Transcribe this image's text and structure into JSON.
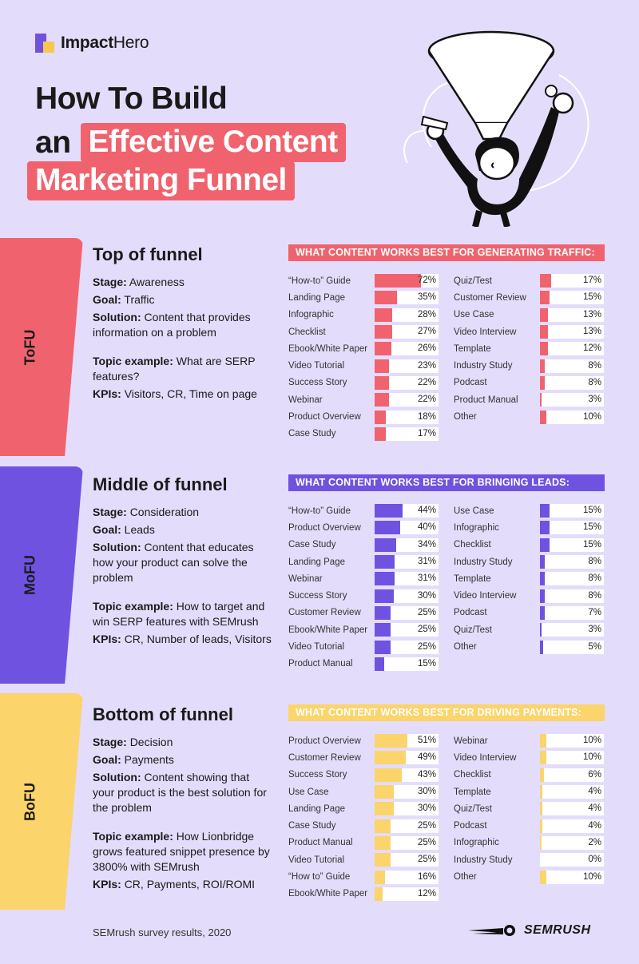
{
  "brand": {
    "logo_strong": "Impact",
    "logo_light": "Hero"
  },
  "title": {
    "line1": "How To Build",
    "line2_plain": "an",
    "line2_highlight": "Effective Content",
    "line3_highlight": "Marketing Funnel"
  },
  "colors": {
    "background": "#e4dcfb",
    "tofu": "#f0636e",
    "mofu": "#6f52e0",
    "bofu": "#fbd46b"
  },
  "stages": [
    {
      "tab": "ToFU",
      "heading": "Top of funnel",
      "stage_label": "Stage:",
      "stage": "Awareness",
      "goal_label": "Goal:",
      "goal": "Traffic",
      "solution_label": "Solution:",
      "solution": "Content that provides information on a problem",
      "topic_label": "Topic example:",
      "topic": "What are SERP features?",
      "kpi_label": "KPIs:",
      "kpis": "Visitors, CR, Time on page",
      "panel_title": "WHAT CONTENT WORKS BEST FOR GENERATING TRAFFIC:"
    },
    {
      "tab": "MoFU",
      "heading": "Middle of funnel",
      "stage_label": "Stage:",
      "stage": "Consideration",
      "goal_label": "Goal:",
      "goal": "Leads",
      "solution_label": "Solution:",
      "solution": "Content that educates how your product can solve the problem",
      "topic_label": "Topic example:",
      "topic": "How to target and win SERP features with SEMrush",
      "kpi_label": "KPIs:",
      "kpis": "CR, Number of leads, Visitors",
      "panel_title": "WHAT CONTENT WORKS BEST FOR BRINGING LEADS:"
    },
    {
      "tab": "BoFU",
      "heading": "Bottom of funnel",
      "stage_label": "Stage:",
      "stage": "Decision",
      "goal_label": "Goal:",
      "goal": "Payments",
      "solution_label": "Solution:",
      "solution": "Content showing that your product is the best solution for the problem",
      "topic_label": "Topic example:",
      "topic": "How Lionbridge grows featured snippet presence by 3800% with SEMrush",
      "kpi_label": "KPIs:",
      "kpis": "CR, Payments, ROI/ROMI",
      "panel_title": "WHAT CONTENT WORKS BEST FOR DRIVING PAYMENTS:"
    }
  ],
  "chart_data": [
    {
      "type": "bar",
      "title": "WHAT CONTENT WORKS BEST FOR GENERATING TRAFFIC:",
      "unit": "%",
      "color": "#f0636e",
      "xlim": [
        0,
        100
      ],
      "categories": [
        "“How-to” Guide",
        "Landing Page",
        "Infographic",
        "Checklist",
        "Ebook/White Paper",
        "Video Tutorial",
        "Success Story",
        "Webinar",
        "Product Overview",
        "Case Study",
        "Quiz/Test",
        "Customer Review",
        "Use Case",
        "Video Interview",
        "Template",
        "Industry Study",
        "Podcast",
        "Product Manual",
        "Other"
      ],
      "values": [
        72,
        35,
        28,
        27,
        26,
        23,
        22,
        22,
        18,
        17,
        17,
        15,
        13,
        13,
        12,
        8,
        8,
        3,
        10
      ]
    },
    {
      "type": "bar",
      "title": "WHAT CONTENT WORKS BEST FOR BRINGING LEADS:",
      "unit": "%",
      "color": "#6f52e0",
      "xlim": [
        0,
        100
      ],
      "categories": [
        "“How-to” Guide",
        "Product Overview",
        "Case Study",
        "Landing Page",
        "Webinar",
        "Success Story",
        "Customer Review",
        "Ebook/White Paper",
        "Video Tutorial",
        "Product Manual",
        "Use Case",
        "Infographic",
        "Checklist",
        "Industry Study",
        "Template",
        "Video Interview",
        "Podcast",
        "Quiz/Test",
        "Other"
      ],
      "values": [
        44,
        40,
        34,
        31,
        31,
        30,
        25,
        25,
        25,
        15,
        15,
        15,
        15,
        8,
        8,
        8,
        7,
        3,
        5
      ]
    },
    {
      "type": "bar",
      "title": "WHAT CONTENT WORKS BEST FOR DRIVING PAYMENTS:",
      "unit": "%",
      "color": "#fbd46b",
      "xlim": [
        0,
        100
      ],
      "categories": [
        "Product Overview",
        "Customer Review",
        "Success Story",
        "Use Case",
        "Landing Page",
        "Case Study",
        "Product Manual",
        "Video Tutorial",
        "“How to” Guide",
        "Ebook/White Paper",
        "Webinar",
        "Video Interview",
        "Checklist",
        "Template",
        "Quiz/Test",
        "Podcast",
        "Infographic",
        "Industry Study",
        "Other"
      ],
      "values": [
        51,
        49,
        43,
        30,
        30,
        25,
        25,
        25,
        16,
        12,
        10,
        10,
        6,
        4,
        4,
        4,
        2,
        0,
        10
      ]
    }
  ],
  "footer": {
    "source": "SEMrush survey results, 2020",
    "brand": "SEMRUSH"
  }
}
